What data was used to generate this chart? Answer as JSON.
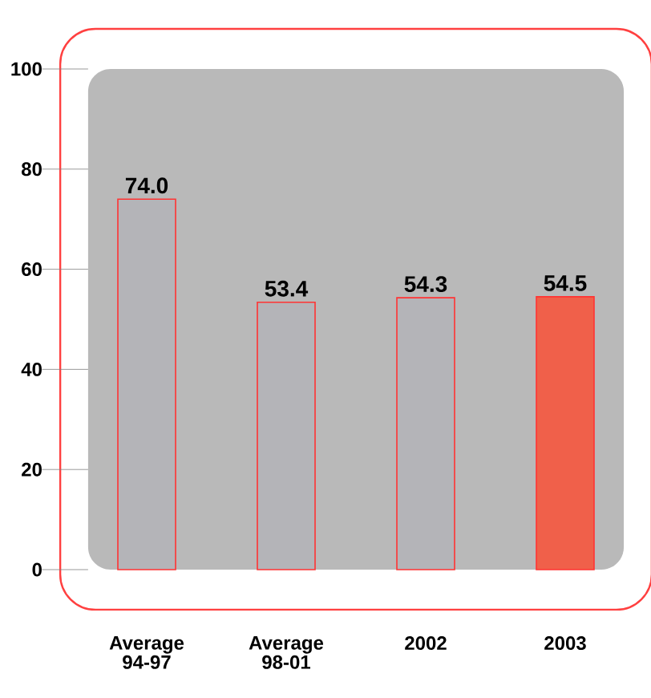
{
  "chart_data": {
    "type": "bar",
    "categories": [
      "Average 94-97",
      "Average 98-01",
      "2002",
      "2003"
    ],
    "values": [
      74.0,
      53.4,
      54.3,
      54.5
    ],
    "value_labels": [
      "74.0",
      "53.4",
      "54.3",
      "54.5"
    ],
    "colors": [
      "#b4b4b8",
      "#b4b4b8",
      "#b4b4b8",
      "#f0604a"
    ],
    "ylim": [
      0,
      100
    ],
    "yticks": [
      0,
      20,
      40,
      60,
      80,
      100
    ]
  }
}
